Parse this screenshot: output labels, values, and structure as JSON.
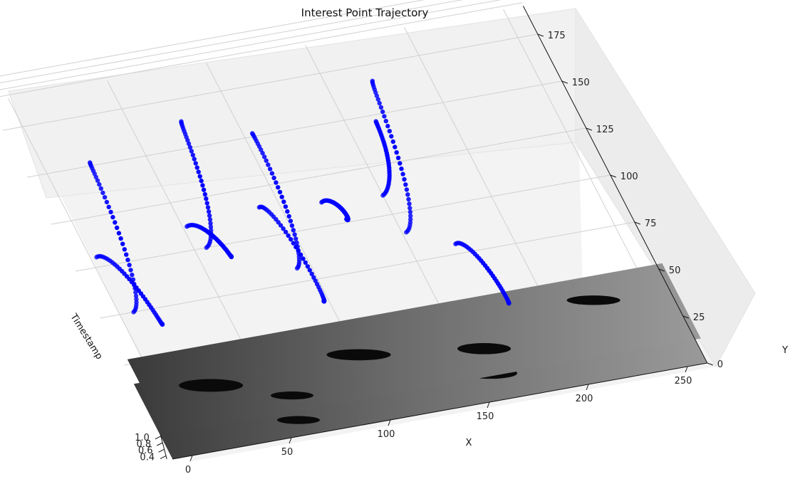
{
  "chart_data": {
    "type": "scatter",
    "projection": "3d",
    "title": "Interest Point Trajectory",
    "xlabel": "X",
    "ylabel": "Y",
    "zlabel": "Timestamp",
    "x_ticks": [
      "0",
      "50",
      "100",
      "150",
      "200",
      "250"
    ],
    "y_ticks": [
      "0",
      "25",
      "50",
      "75",
      "100",
      "125",
      "150",
      "175"
    ],
    "z_ticks": [
      "0.4",
      "0.6",
      "0.8",
      "1.0"
    ],
    "xlim": [
      -10,
      260
    ],
    "ylim": [
      0,
      190
    ],
    "zlim": [
      0.3,
      1.05
    ],
    "grid": true,
    "point_color": "#0000ff",
    "frame_image_timestamps": [
      0.3,
      1.05
    ],
    "series": [
      {
        "x": [
          3,
          15
        ],
        "y": [
          105,
          55
        ],
        "z": [
          0.3,
          1.0
        ]
      },
      {
        "x": [
          7,
          20
        ],
        "y": [
          75,
          140
        ],
        "z": [
          0.3,
          1.0
        ]
      },
      {
        "x": [
          52,
          63
        ],
        "y": [
          112,
          82
        ],
        "z": [
          0.3,
          1.0
        ]
      },
      {
        "x": [
          56,
          72
        ],
        "y": [
          100,
          152
        ],
        "z": [
          0.3,
          1.0
        ]
      },
      {
        "x": [
          90,
          95
        ],
        "y": [
          115,
          52
        ],
        "z": [
          0.3,
          1.0
        ]
      },
      {
        "x": [
          93,
          102
        ],
        "y": [
          82,
          140
        ],
        "z": [
          0.3,
          1.0
        ]
      },
      {
        "x": [
          120,
          125
        ],
        "y": [
          112,
          90
        ],
        "z": [
          0.3,
          1.0
        ]
      },
      {
        "x": [
          150,
          162
        ],
        "y": [
          110,
          135
        ],
        "z": [
          0.3,
          1.0
        ]
      },
      {
        "x": [
          152,
          170
        ],
        "y": [
          90,
          155
        ],
        "z": [
          0.3,
          1.0
        ]
      },
      {
        "x": [
          172,
          180
        ],
        "y": [
          80,
          35
        ],
        "z": [
          0.3,
          1.0
        ]
      }
    ]
  }
}
